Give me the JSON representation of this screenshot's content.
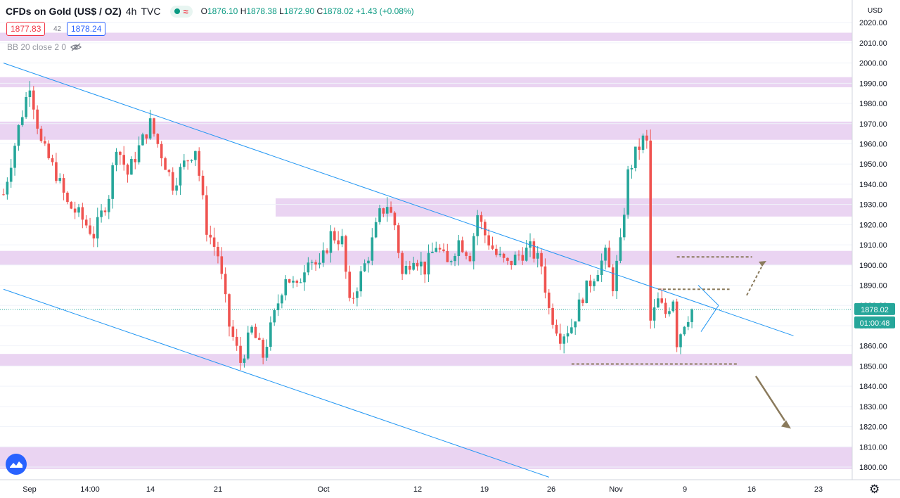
{
  "header": {
    "symbol": "CFDs on Gold (US$ / OZ)",
    "interval": "4h",
    "source": "TVC",
    "open_label": "O",
    "open": "1876.10",
    "high_label": "H",
    "high": "1878.38",
    "low_label": "L",
    "low": "1872.90",
    "close_label": "C",
    "close": "1878.02",
    "change": "+1.43 (+0.08%)"
  },
  "quote": {
    "sell": "1877.83",
    "spread": "42",
    "buy": "1878.24"
  },
  "indicator": {
    "label": "BB 20 close 2 0"
  },
  "colors": {
    "up": "#26a69a",
    "down": "#ef5350",
    "zone": "#e6cdf0",
    "trendline": "#2196f3",
    "annotation": "#8a7a5c",
    "price_label": "#26a69a",
    "axis_text": "#131722"
  },
  "chart_data": {
    "type": "candlestick",
    "title": "CFDs on Gold (US$ / OZ)",
    "currency": "USD",
    "ylim": [
      1795,
      2030
    ],
    "y_ticks": [
      1800,
      1810,
      1820,
      1830,
      1840,
      1850,
      1860,
      1870,
      1880,
      1890,
      1900,
      1910,
      1920,
      1930,
      1940,
      1950,
      1960,
      1970,
      1980,
      1990,
      2000,
      2010,
      2020
    ],
    "y_tick_labels": [
      "1800.00",
      "1810.00",
      "1820.00",
      "1830.00",
      "1840.00",
      "1850.00",
      "1860.00",
      "1870.00",
      "1880.00",
      "1890.00",
      "1900.00",
      "1910.00",
      "1920.00",
      "1930.00",
      "1940.00",
      "1950.00",
      "1960.00",
      "1970.00",
      "1980.00",
      "1990.00",
      "2000.00",
      "2010.00",
      "2020.00"
    ],
    "x_labels": [
      "Sep",
      "14:00",
      "14",
      "21",
      "Oct",
      "12",
      "19",
      "26",
      "Nov",
      "9",
      "16",
      "23"
    ],
    "last_price": 1878.02,
    "last_price_label": "1878.02",
    "countdown": "01:00:48",
    "anchors": [
      {
        "t": 0,
        "p": 1935
      },
      {
        "t": 4,
        "p": 1968
      },
      {
        "t": 7,
        "p": 1990
      },
      {
        "t": 10,
        "p": 1960
      },
      {
        "t": 14,
        "p": 1945
      },
      {
        "t": 17,
        "p": 1930
      },
      {
        "t": 20,
        "p": 1925
      },
      {
        "t": 24,
        "p": 1915
      },
      {
        "t": 28,
        "p": 1935
      },
      {
        "t": 30,
        "p": 1960
      },
      {
        "t": 33,
        "p": 1945
      },
      {
        "t": 36,
        "p": 1958
      },
      {
        "t": 39,
        "p": 1970
      },
      {
        "t": 42,
        "p": 1955
      },
      {
        "t": 45,
        "p": 1940
      },
      {
        "t": 48,
        "p": 1950
      },
      {
        "t": 51,
        "p": 1958
      },
      {
        "t": 54,
        "p": 1918
      },
      {
        "t": 57,
        "p": 1905
      },
      {
        "t": 60,
        "p": 1870
      },
      {
        "t": 63,
        "p": 1852
      },
      {
        "t": 66,
        "p": 1868
      },
      {
        "t": 69,
        "p": 1855
      },
      {
        "t": 72,
        "p": 1875
      },
      {
        "t": 75,
        "p": 1895
      },
      {
        "t": 78,
        "p": 1888
      },
      {
        "t": 81,
        "p": 1905
      },
      {
        "t": 84,
        "p": 1898
      },
      {
        "t": 87,
        "p": 1915
      },
      {
        "t": 90,
        "p": 1912
      },
      {
        "t": 92,
        "p": 1880
      },
      {
        "t": 94,
        "p": 1890
      },
      {
        "t": 97,
        "p": 1905
      },
      {
        "t": 100,
        "p": 1925
      },
      {
        "t": 102,
        "p": 1930
      },
      {
        "t": 104,
        "p": 1920
      },
      {
        "t": 106,
        "p": 1895
      },
      {
        "t": 109,
        "p": 1905
      },
      {
        "t": 112,
        "p": 1898
      },
      {
        "t": 115,
        "p": 1910
      },
      {
        "t": 118,
        "p": 1900
      },
      {
        "t": 121,
        "p": 1912
      },
      {
        "t": 124,
        "p": 1905
      },
      {
        "t": 126,
        "p": 1925
      },
      {
        "t": 128,
        "p": 1915
      },
      {
        "t": 131,
        "p": 1905
      },
      {
        "t": 134,
        "p": 1900
      },
      {
        "t": 137,
        "p": 1905
      },
      {
        "t": 140,
        "p": 1908
      },
      {
        "t": 143,
        "p": 1900
      },
      {
        "t": 145,
        "p": 1878
      },
      {
        "t": 148,
        "p": 1865
      },
      {
        "t": 151,
        "p": 1870
      },
      {
        "t": 154,
        "p": 1885
      },
      {
        "t": 157,
        "p": 1895
      },
      {
        "t": 160,
        "p": 1905
      },
      {
        "t": 162,
        "p": 1890
      },
      {
        "t": 164,
        "p": 1910
      },
      {
        "t": 166,
        "p": 1945
      },
      {
        "t": 168,
        "p": 1955
      },
      {
        "t": 170,
        "p": 1962
      },
      {
        "t": 171,
        "p": 1960
      },
      {
        "t": 172,
        "p": 1872
      },
      {
        "t": 174,
        "p": 1882
      },
      {
        "t": 176,
        "p": 1876
      },
      {
        "t": 178,
        "p": 1884
      },
      {
        "t": 179,
        "p": 1862
      },
      {
        "t": 181,
        "p": 1872
      },
      {
        "t": 183,
        "p": 1878
      }
    ],
    "zones": [
      {
        "lo": 2011,
        "hi": 2015,
        "from": "start"
      },
      {
        "lo": 1988,
        "hi": 1993,
        "from": "start"
      },
      {
        "lo": 1962,
        "hi": 1971,
        "from": "start"
      },
      {
        "lo": 1924,
        "hi": 1933,
        "from": "late-sep"
      },
      {
        "lo": 1900,
        "hi": 1907,
        "from": "start"
      },
      {
        "lo": 1850,
        "hi": 1856,
        "from": "start"
      },
      {
        "lo": 1799,
        "hi": 1810,
        "from": "start"
      }
    ],
    "trendlines": [
      {
        "t1": 0,
        "p1": 2000,
        "t2": 210,
        "p2": 1865
      },
      {
        "t1": 0,
        "p1": 1888,
        "t2": 145,
        "p2": 1795
      }
    ],
    "dashed_levels": [
      {
        "price": 1904,
        "from_t": 179,
        "to_t": 199
      },
      {
        "price": 1888,
        "from_t": 174,
        "to_t": 193
      },
      {
        "price": 1851,
        "from_t": 151,
        "to_t": 195
      }
    ]
  }
}
